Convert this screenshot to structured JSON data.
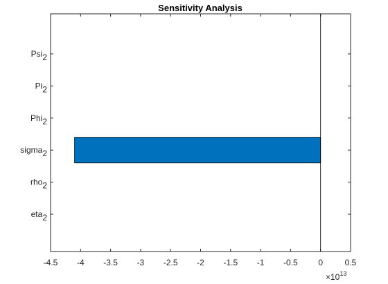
{
  "chart_data": {
    "type": "barh",
    "title": "Sensitivity Analysis",
    "categories": [
      "eta",
      "rho",
      "sigma",
      "Phi",
      "Pi",
      "Psi"
    ],
    "category_subscripts": [
      "2",
      "2",
      "2",
      "2",
      "2",
      "2"
    ],
    "values": [
      0,
      0,
      -4.1,
      0,
      0,
      0
    ],
    "color": "#0072bd",
    "xlim": [
      -4.5,
      0.5
    ],
    "xticks": [
      -4.5,
      -4,
      -3.5,
      -3,
      -2.5,
      -2,
      -1.5,
      -1,
      -0.5,
      0,
      0.5
    ],
    "x_multiplier": {
      "base": "×10",
      "exponent": "13"
    },
    "grid": false
  }
}
